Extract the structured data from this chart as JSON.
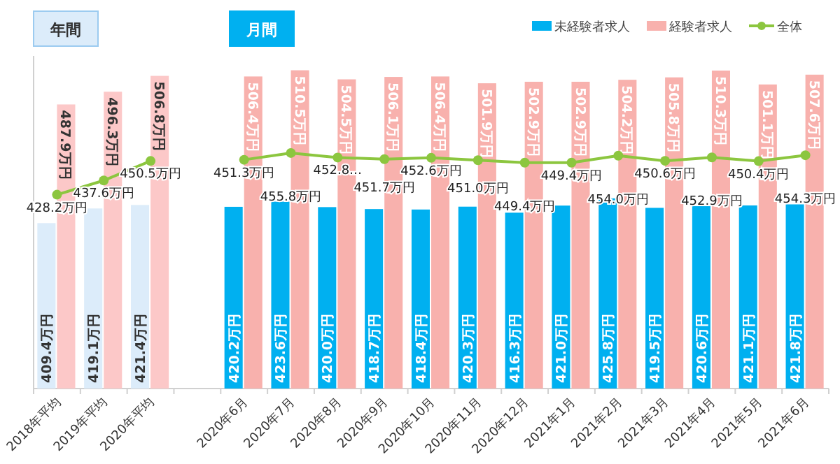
{
  "chart_data": {
    "type": "bar",
    "categories": [
      "2018年平均",
      "2019年平均",
      "2020年平均",
      null,
      "2020年6月",
      "2020年7月",
      "2020年8月",
      "2020年9月",
      "2020年10月",
      "2020年11月",
      "2020年12月",
      "2021年1月",
      "2021年2月",
      "2021年3月",
      "2021年4月",
      "2021年5月",
      "2021年6月"
    ],
    "series": [
      {
        "name": "未経験者求人",
        "color": "#00b0f0",
        "colors": [
          "#dcecfa",
          "#dcecfa",
          "#dcecfa",
          null,
          "#00b0f0",
          "#00b0f0",
          "#00b0f0",
          "#00b0f0",
          "#00b0f0",
          "#00b0f0",
          "#00b0f0",
          "#00b0f0",
          "#00b0f0",
          "#00b0f0",
          "#00b0f0",
          "#00b0f0",
          "#00b0f0"
        ],
        "values": [
          409.4,
          419.1,
          421.4,
          null,
          420.2,
          423.6,
          420.0,
          418.7,
          418.4,
          420.3,
          416.3,
          421.0,
          425.8,
          419.5,
          420.6,
          421.1,
          421.8
        ],
        "value_labels": [
          "409.4万円",
          "419.1万円",
          "421.4万円",
          null,
          "420.2万円",
          "423.6万円",
          "420.0万円",
          "418.7万円",
          "418.4万円",
          "420.3万円",
          "416.3万円",
          "421.0万円",
          "425.8万円",
          "419.5万円",
          "420.6万円",
          "421.1万円",
          "421.8万円"
        ]
      },
      {
        "name": "経験者求人",
        "color": "#f8b1ad",
        "colors": [
          "#fcc8c8",
          "#fcc8c8",
          "#fcc8c8",
          null,
          "#f8b1ad",
          "#f8b1ad",
          "#f8b1ad",
          "#f8b1ad",
          "#f8b1ad",
          "#f8b1ad",
          "#f8b1ad",
          "#f8b1ad",
          "#f8b1ad",
          "#f8b1ad",
          "#f8b1ad",
          "#f8b1ad",
          "#f8b1ad"
        ],
        "values": [
          487.9,
          496.3,
          506.8,
          null,
          506.4,
          510.5,
          504.5,
          506.1,
          506.4,
          501.9,
          502.9,
          502.9,
          504.2,
          505.8,
          510.3,
          501.1,
          507.6
        ],
        "value_labels": [
          "487.9万円",
          "496.3万円",
          "506.8万円",
          null,
          "506.4万円",
          "510.5万円",
          "504.5万円",
          "506.1万円",
          "506.4万円",
          "501.9万円",
          "502.9万円",
          "502.9万円",
          "504.2万円",
          "505.8万円",
          "510.3万円",
          "501.1万円",
          "507.6万円"
        ]
      },
      {
        "name": "全体",
        "type": "line",
        "color": "#8cc63f",
        "values": [
          428.2,
          437.6,
          450.5,
          null,
          451.3,
          455.8,
          452.8,
          451.7,
          452.6,
          451.0,
          449.4,
          449.4,
          454.0,
          450.6,
          452.9,
          450.4,
          454.3
        ],
        "value_labels": [
          "428.2万円",
          "437.6万円",
          "450.5万円",
          null,
          "451.3万円",
          "455.8万円",
          "452.8…",
          "451.7万円",
          "452.6万円",
          "451.0万円",
          "449.4万円",
          "449.4万円",
          "454.0万円",
          "450.6万円",
          "452.9万円",
          "450.4万円",
          "454.3万円"
        ]
      }
    ],
    "ylim": [
      300,
      520
    ],
    "tick_labels": "x",
    "legend": "top right",
    "marker": "circle",
    "annotations": [
      "年間",
      "月間"
    ]
  }
}
